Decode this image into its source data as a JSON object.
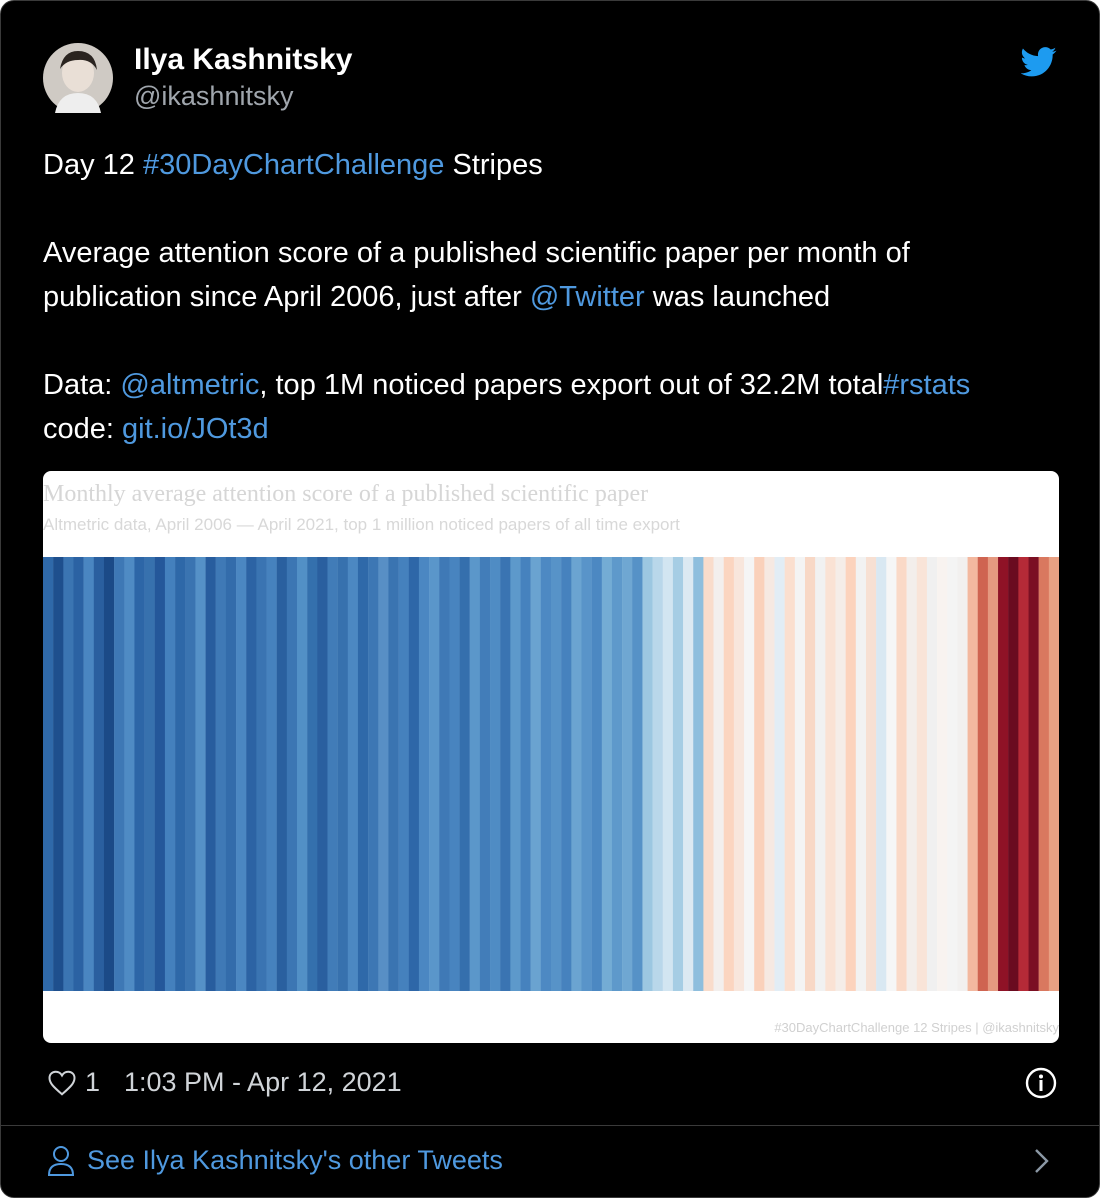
{
  "author": {
    "name": "Ilya Kashnitsky",
    "handle": "@ikashnitsky"
  },
  "tweet": {
    "paragraphs": [
      [
        {
          "text": "Day 12 "
        },
        {
          "text": "#30DayChartChallenge",
          "link": true
        },
        {
          "text": " Stripes"
        }
      ],
      [
        {
          "text": "Average attention score of a published scientific paper per month of publication since April 2006, just after "
        },
        {
          "text": "@Twitter",
          "link": true
        },
        {
          "text": " was launched"
        }
      ],
      [
        {
          "text": "Data: "
        },
        {
          "text": "@altmetric",
          "link": true
        },
        {
          "text": ", top 1M noticed papers export out of 32.2M total"
        },
        {
          "text": "#rstats",
          "link": true
        },
        {
          "text": " code: "
        },
        {
          "text": "git.io/JOt3d",
          "link": true
        }
      ]
    ]
  },
  "image": {
    "title": "Monthly average attention score of a published scientific paper",
    "subtitle": "Altmetric data, April 2006 — April 2021, top 1 million noticed papers of all time export",
    "caption": "#30DayChartChallenge 12 Stripes | @ikashnitsky",
    "stripe_colors": [
      "#2f69a9",
      "#1e4f8d",
      "#3b75b2",
      "#2b62a3",
      "#4a86c1",
      "#2a5f9f",
      "#1b4a87",
      "#3e78b5",
      "#4f8bc4",
      "#2d66a7",
      "#3771ae",
      "#24579a",
      "#4480bd",
      "#2e68a8",
      "#3a74b1",
      "#5591c7",
      "#285d9e",
      "#3f79b6",
      "#336cab",
      "#4b87c2",
      "#2c63a4",
      "#3a74b2",
      "#4682be",
      "#2a609f",
      "#3c76b3",
      "#5290c6",
      "#3470ad",
      "#2a5f9f",
      "#417cb8",
      "#3771ae",
      "#4c88c2",
      "#2f69a9",
      "#3d77b4",
      "#588fc5",
      "#3a74b1",
      "#4581bd",
      "#2e67a8",
      "#4b87c2",
      "#5a96ca",
      "#3f79b6",
      "#4884bf",
      "#356fad",
      "#5b97ca",
      "#427db9",
      "#4f8cc4",
      "#3a74b2",
      "#5d99cb",
      "#4682be",
      "#6aa3d0",
      "#4d89c3",
      "#5793c8",
      "#4682be",
      "#6ba4d1",
      "#5994c9",
      "#4c88c2",
      "#74acd4",
      "#5e99cb",
      "#6fa7d2",
      "#5692c7",
      "#9cc7e1",
      "#b9d7ea",
      "#d2e5f1",
      "#a6cde4",
      "#dce9f2",
      "#8ebedd",
      "#f9dccb",
      "#f3efed",
      "#fbd5c0",
      "#f8e6dc",
      "#f5f5f5",
      "#fad1bb",
      "#f6e9e2",
      "#e2edf5",
      "#fbdfcf",
      "#f4f4f4",
      "#f8d8c6",
      "#f1f1f1",
      "#fae2d4",
      "#f5ede8",
      "#fcd3bd",
      "#f2f2f2",
      "#f7e0d3",
      "#d9e8f2",
      "#f6f6f6",
      "#fad9c7",
      "#f3eeeb",
      "#f9e4d8",
      "#f0f0f0",
      "#f8f3f0",
      "#f4f4f4",
      "#f2f0ef",
      "#f3b89f",
      "#cf6451",
      "#e59980",
      "#8f1226",
      "#6a0b20",
      "#b52a37",
      "#7b0f23",
      "#d9785f",
      "#e8a083"
    ]
  },
  "footer": {
    "likes": 1,
    "timestamp": "1:03 PM - Apr 12, 2021"
  },
  "more_link": "See Ilya Kashnitsky's other Tweets"
}
